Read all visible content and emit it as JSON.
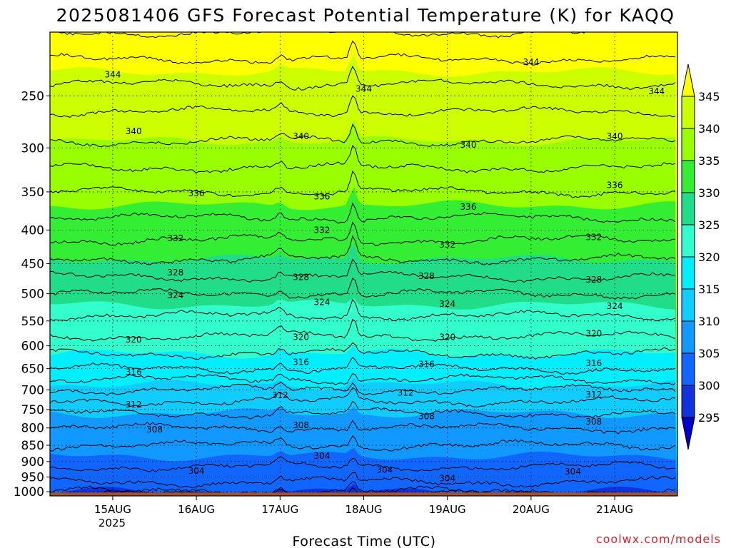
{
  "chart_data": {
    "type": "heatmap",
    "title": "2025081406 GFS Forecast Potential Temperature (K) for KAQQ",
    "xlabel": "Forecast Time (UTC)",
    "credit": "coolwx.com/models",
    "x_ticks": [
      "15AUG",
      "16AUG",
      "17AUG",
      "18AUG",
      "19AUG",
      "20AUG",
      "21AUG"
    ],
    "x_year": "2025",
    "y_ticks": [
      250,
      300,
      350,
      400,
      450,
      500,
      550,
      600,
      650,
      700,
      750,
      800,
      850,
      900,
      950,
      1000
    ],
    "y_range": [
      200,
      1015
    ],
    "x_range": [
      "2025-08-14T06",
      "2025-08-21T18"
    ],
    "colorbar": {
      "ticks": [
        345,
        340,
        335,
        330,
        325,
        320,
        315,
        310,
        305,
        300,
        295
      ],
      "bins": [
        {
          "lo": 345,
          "hi": 350,
          "color": "#ffff00"
        },
        {
          "lo": 340,
          "hi": 345,
          "color": "#ccff00"
        },
        {
          "lo": 335,
          "hi": 340,
          "color": "#99ff00"
        },
        {
          "lo": 330,
          "hi": 335,
          "color": "#33ee33"
        },
        {
          "lo": 325,
          "hi": 330,
          "color": "#22dd88"
        },
        {
          "lo": 320,
          "hi": 325,
          "color": "#33ffcc"
        },
        {
          "lo": 315,
          "hi": 320,
          "color": "#00eeff"
        },
        {
          "lo": 310,
          "hi": 315,
          "color": "#11ccff"
        },
        {
          "lo": 305,
          "hi": 310,
          "color": "#1199ff"
        },
        {
          "lo": 300,
          "hi": 305,
          "color": "#1166ff"
        },
        {
          "lo": 295,
          "hi": 300,
          "color": "#1133dd"
        },
        {
          "lo": 290,
          "hi": 295,
          "color": "#0000cc"
        }
      ],
      "ground_color": "#a0522d"
    },
    "profile": [
      {
        "p": 200,
        "theta": 348
      },
      {
        "p": 250,
        "theta": 343
      },
      {
        "p": 300,
        "theta": 339.5
      },
      {
        "p": 350,
        "theta": 336
      },
      {
        "p": 400,
        "theta": 333
      },
      {
        "p": 450,
        "theta": 329.5
      },
      {
        "p": 500,
        "theta": 326
      },
      {
        "p": 550,
        "theta": 323.5
      },
      {
        "p": 600,
        "theta": 321
      },
      {
        "p": 650,
        "theta": 318
      },
      {
        "p": 700,
        "theta": 314
      },
      {
        "p": 750,
        "theta": 310.5
      },
      {
        "p": 800,
        "theta": 308
      },
      {
        "p": 850,
        "theta": 306
      },
      {
        "p": 900,
        "theta": 304.5
      },
      {
        "p": 950,
        "theta": 303
      },
      {
        "p": 1000,
        "theta": 300
      },
      {
        "p": 1015,
        "theta": 297
      }
    ],
    "contour_labels": [
      {
        "value": "344",
        "time": "2025-08-15T00",
        "p": 232
      },
      {
        "value": "344",
        "time": "2025-08-18T00",
        "p": 244
      },
      {
        "value": "344",
        "time": "2025-08-20T00",
        "p": 222
      },
      {
        "value": "344",
        "time": "2025-08-21T12",
        "p": 246
      },
      {
        "value": "340",
        "time": "2025-08-15T06",
        "p": 283
      },
      {
        "value": "340",
        "time": "2025-08-17T06",
        "p": 288
      },
      {
        "value": "340",
        "time": "2025-08-19T06",
        "p": 297
      },
      {
        "value": "340",
        "time": "2025-08-21T00",
        "p": 288
      },
      {
        "value": "336",
        "time": "2025-08-16T00",
        "p": 352
      },
      {
        "value": "336",
        "time": "2025-08-17T12",
        "p": 356
      },
      {
        "value": "336",
        "time": "2025-08-19T06",
        "p": 369
      },
      {
        "value": "336",
        "time": "2025-08-21T00",
        "p": 342
      },
      {
        "value": "332",
        "time": "2025-08-15T18",
        "p": 412
      },
      {
        "value": "332",
        "time": "2025-08-17T12",
        "p": 400
      },
      {
        "value": "332",
        "time": "2025-08-19T00",
        "p": 421
      },
      {
        "value": "332",
        "time": "2025-08-20T18",
        "p": 410
      },
      {
        "value": "328",
        "time": "2025-08-15T18",
        "p": 464
      },
      {
        "value": "328",
        "time": "2025-08-17T06",
        "p": 472
      },
      {
        "value": "328",
        "time": "2025-08-18T18",
        "p": 470
      },
      {
        "value": "328",
        "time": "2025-08-20T18",
        "p": 476
      },
      {
        "value": "324",
        "time": "2025-08-15T18",
        "p": 503
      },
      {
        "value": "324",
        "time": "2025-08-17T12",
        "p": 515
      },
      {
        "value": "324",
        "time": "2025-08-19T00",
        "p": 518
      },
      {
        "value": "324",
        "time": "2025-08-21T00",
        "p": 522
      },
      {
        "value": "320",
        "time": "2025-08-15T06",
        "p": 587
      },
      {
        "value": "320",
        "time": "2025-08-17T06",
        "p": 582
      },
      {
        "value": "320",
        "time": "2025-08-19T00",
        "p": 582
      },
      {
        "value": "320",
        "time": "2025-08-20T18",
        "p": 575
      },
      {
        "value": "316",
        "time": "2025-08-15T06",
        "p": 658
      },
      {
        "value": "316",
        "time": "2025-08-17T06",
        "p": 635
      },
      {
        "value": "316",
        "time": "2025-08-18T18",
        "p": 640
      },
      {
        "value": "316",
        "time": "2025-08-20T18",
        "p": 638
      },
      {
        "value": "312",
        "time": "2025-08-15T06",
        "p": 737
      },
      {
        "value": "312",
        "time": "2025-08-17T00",
        "p": 714
      },
      {
        "value": "312",
        "time": "2025-08-18T12",
        "p": 707
      },
      {
        "value": "312",
        "time": "2025-08-20T18",
        "p": 712
      },
      {
        "value": "308",
        "time": "2025-08-15T12",
        "p": 805
      },
      {
        "value": "308",
        "time": "2025-08-17T06",
        "p": 793
      },
      {
        "value": "308",
        "time": "2025-08-18T18",
        "p": 768
      },
      {
        "value": "308",
        "time": "2025-08-20T18",
        "p": 783
      },
      {
        "value": "304",
        "time": "2025-08-16T00",
        "p": 930
      },
      {
        "value": "304",
        "time": "2025-08-17T12",
        "p": 882
      },
      {
        "value": "304",
        "time": "2025-08-18T06",
        "p": 927
      },
      {
        "value": "304",
        "time": "2025-08-19T00",
        "p": 955
      },
      {
        "value": "304",
        "time": "2025-08-20T12",
        "p": 932
      }
    ]
  }
}
